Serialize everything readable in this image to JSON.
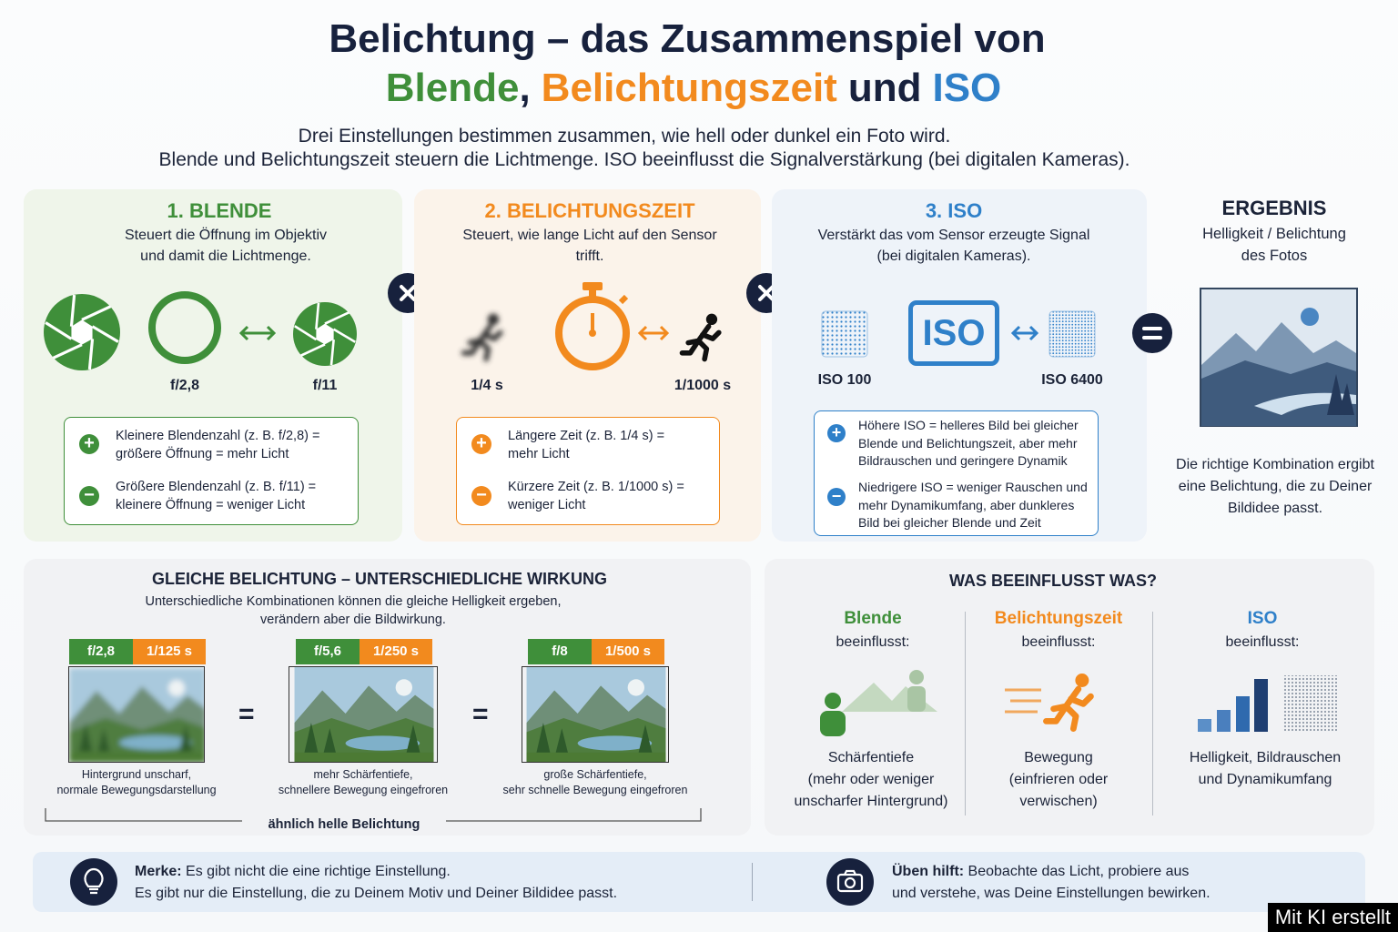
{
  "header": {
    "title": "Belichtung – das Zusammenspiel von",
    "title_parts": [
      {
        "text": "Blende",
        "color": "#3f8f3a"
      },
      {
        "text": ","
      },
      {
        "text": "Belichtungszeit",
        "color": "#f28a1e"
      },
      {
        "text": "und"
      },
      {
        "text": "ISO",
        "color": "#2f80c9"
      }
    ],
    "intro": [
      "Drei Einstellungen bestimmen zusammen, wie hell oder dunkel ein Foto wird.",
      "Blende und Belichtungszeit steuern die Lichtmenge. ISO beeinflusst die Signalverstärkung (bei digitalen Kameras)."
    ]
  },
  "settings": [
    {
      "title": "1. BLENDE",
      "color": "#3f8f3a",
      "description": [
        "Steuert die Öffnung im Objektiv",
        "und damit die Lichtmenge."
      ],
      "labels": [
        "f/2,8",
        "f/11"
      ],
      "notes": [
        [
          "Kleinere Blendenzahl (z. B. f/2,8) =",
          "größere Öffnung = mehr Licht"
        ],
        [
          "Größere Blendenzahl (z. B. f/11) =",
          "kleinere Öffnung = weniger Licht"
        ]
      ]
    },
    {
      "title": "2. BELICHTUNGSZEIT",
      "color": "#f28a1e",
      "description": [
        "Steuert, wie lange Licht auf den Sensor",
        "trifft."
      ],
      "labels": [
        "1/4 s",
        "1/1000 s"
      ],
      "notes": [
        [
          "Längere Zeit (z. B. 1/4 s) =",
          "mehr Licht"
        ],
        [
          "Kürzere Zeit (z. B. 1/1000 s) =",
          "weniger Licht"
        ]
      ]
    },
    {
      "title": "3. ISO",
      "color": "#2f80c9",
      "description": [
        "Verstärkt das vom Sensor erzeugte Signal",
        "(bei digitalen Kameras)."
      ],
      "icon_text": "ISO",
      "labels": [
        "ISO 100",
        "ISO 6400"
      ],
      "notes": [
        [
          "Höhere ISO = helleres Bild bei gleicher",
          "Blende und Belichtungszeit, aber mehr",
          "Bildrauschen und geringere Dynamik"
        ],
        [
          "Niedrigere ISO = weniger Rauschen und",
          "mehr Dynamikumfang, aber dunkleres",
          "Bild bei gleicher Blende und Zeit"
        ]
      ]
    }
  ],
  "result": {
    "title": "ERGEBNIS",
    "description": [
      "Helligkeit / Belichtung",
      "des Fotos"
    ],
    "text": [
      "Die richtige Kombination ergibt",
      "eine Belichtung, die zu Deiner",
      "Bildidee passt."
    ]
  },
  "comparison": {
    "title": "GLEICHE BELICHTUNG – UNTERSCHIEDLICHE WIRKUNG",
    "description": [
      "Unterschiedliche Kombinationen können die gleiche Helligkeit ergeben,",
      "verändern aber die Bildwirkung."
    ],
    "examples": [
      {
        "aperture": "f/2,8",
        "shutter": "1/125 s",
        "caption": [
          "Hintergrund unscharf,",
          "normale Bewegungsdarstellung"
        ]
      },
      {
        "aperture": "f/5,6",
        "shutter": "1/250 s",
        "caption": [
          "mehr Schärfentiefe,",
          "schnellere Bewegung eingefroren"
        ]
      },
      {
        "aperture": "f/8",
        "shutter": "1/500 s",
        "caption": [
          "große Schärfentiefe,",
          "sehr schnelle Bewegung eingefroren"
        ]
      }
    ],
    "footer": "ähnlich helle Belichtung"
  },
  "influence": {
    "title": "WAS BEEINFLUSST WAS?",
    "columns": [
      {
        "name": "Blende",
        "verb": "beeinflusst:",
        "effect": [
          "Schärfentiefe",
          "(mehr oder weniger",
          "unscharfer Hintergrund)"
        ]
      },
      {
        "name": "Belichtungszeit",
        "verb": "beeinflusst:",
        "effect": [
          "Bewegung",
          "(einfrieren oder",
          "verwischen)"
        ]
      },
      {
        "name": "ISO",
        "verb": "beeinflusst:",
        "effect": [
          "Helligkeit, Bildrauschen",
          "und Dynamikumfang"
        ]
      }
    ]
  },
  "tips": [
    {
      "label": "Merke:",
      "lines": [
        "Es gibt nicht die eine richtige Einstellung.",
        "Es gibt nur die Einstellung, die zu Deinem Motiv und Deiner Bildidee passt."
      ]
    },
    {
      "label": "Üben hilft:",
      "lines": [
        "Beobachte das Licht, probiere aus",
        "und verstehe, was Deine Einstellungen bewirken."
      ]
    }
  ],
  "badge": "Mit KI erstellt"
}
